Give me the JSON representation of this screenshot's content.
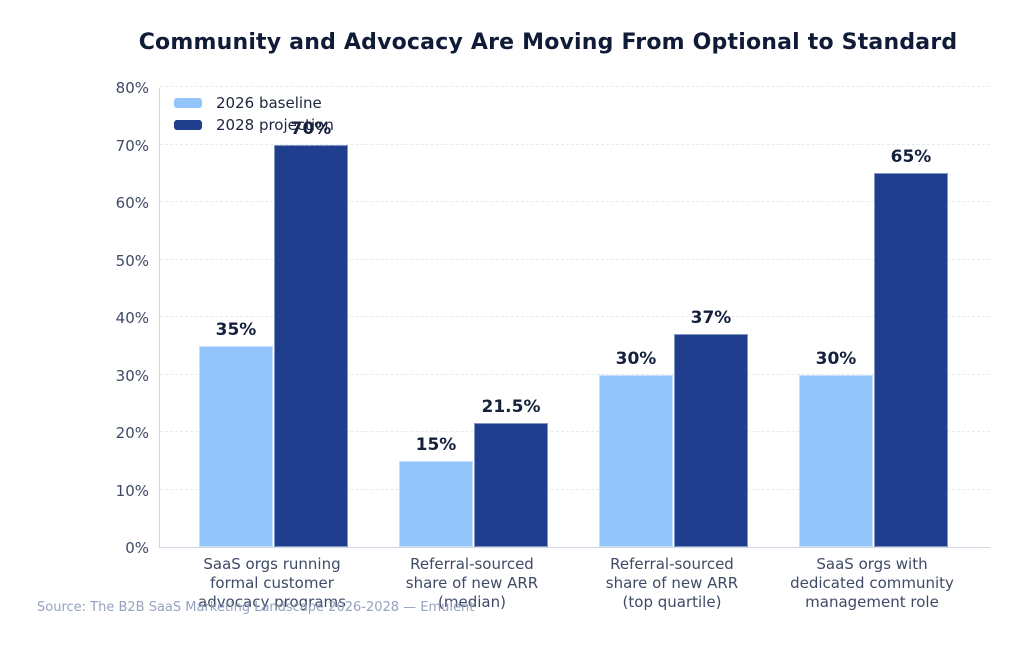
{
  "title": "Community and Advocacy Are Moving From Optional to Standard",
  "source": "Source: The B2B SaaS Marketing Landscape 2026-2028 — Emulent",
  "chart_data": {
    "type": "bar",
    "title": "Community and Advocacy Are Moving From Optional to Standard",
    "categories": [
      "SaaS orgs running formal customer advocacy programs",
      "Referral-sourced share of new ARR (median)",
      "Referral-sourced share of new ARR (top quartile)",
      "SaaS orgs with dedicated community management role"
    ],
    "category_lines": [
      [
        "SaaS orgs running",
        "formal customer",
        "advocacy programs"
      ],
      [
        "Referral-sourced",
        "share of new ARR",
        "(median)"
      ],
      [
        "Referral-sourced",
        "share of new ARR",
        "(top quartile)"
      ],
      [
        "SaaS orgs with",
        "dedicated community",
        "management role"
      ]
    ],
    "series": [
      {
        "name": "2026 baseline",
        "color": "#92c5fc",
        "values": [
          35,
          15,
          30,
          30
        ],
        "labels": [
          "35%",
          "15%",
          "30%",
          "30%"
        ]
      },
      {
        "name": "2028 projection",
        "color": "#1f3e8e",
        "values": [
          70,
          21.5,
          37,
          65
        ],
        "labels": [
          "70%",
          "21.5%",
          "37%",
          "65%"
        ]
      }
    ],
    "xlabel": "",
    "ylabel": "",
    "ylim": [
      0,
      80
    ],
    "ytick_values": [
      0,
      10,
      20,
      30,
      40,
      50,
      60,
      70,
      80
    ],
    "ytick_labels": [
      "0%",
      "10%",
      "20%",
      "30%",
      "40%",
      "50%",
      "60%",
      "70%",
      "80%"
    ],
    "grid": true,
    "grid_style": "dashed-horizontal",
    "legend_position": "top-left",
    "colors": {
      "baseline_bar": "#92c5fc",
      "projection_bar": "#1f3e8e",
      "title_text": "#101b38",
      "value_label_text": "#15203d",
      "tick_text": "#3e4a66",
      "axis_line": "#cfd7e5",
      "gridline": "#e4eaf4",
      "source_text": "#95a3bf",
      "background": "#ffffff"
    }
  }
}
